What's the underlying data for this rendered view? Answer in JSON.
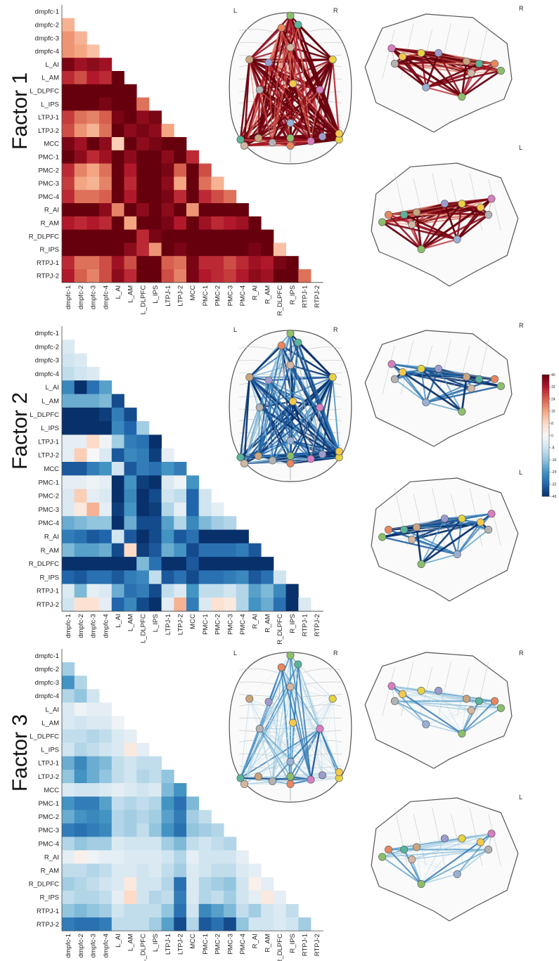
{
  "figure": {
    "rois": [
      "dmpfc-1",
      "dmpfc-2",
      "dmpfc-3",
      "dmpfc-4",
      "L_AI",
      "L_AM",
      "L_DLPFC",
      "L_IPS",
      "LTPJ-1",
      "LTPJ-2",
      "MCC",
      "PMC-1",
      "PMC-2",
      "PMC-3",
      "PMC-4",
      "R_AI",
      "R_AM",
      "R_DLPFC",
      "R_IPS",
      "RTPJ-1",
      "RTPJ-2"
    ],
    "hemisphere_labels": {
      "left": "L",
      "right": "R"
    },
    "colorbar": {
      "ticks": [
        "40",
        "32",
        "24",
        "16",
        "8",
        "0",
        "-8",
        "-16",
        "-24",
        "-32",
        "-40"
      ],
      "min": -40,
      "max": 40,
      "colors": {
        "neg": "#08306b",
        "mid": "#f7f7f7",
        "pos": "#67000d"
      }
    },
    "factors": [
      {
        "label": "Factor 1",
        "sign": 1
      },
      {
        "label": "Factor 2",
        "sign": -1
      },
      {
        "label": "Factor 3",
        "sign": -1
      }
    ]
  },
  "chart_data": [
    {
      "type": "heatmap",
      "title": "Factor 1",
      "rows": [
        "dmpfc-1",
        "dmpfc-2",
        "dmpfc-3",
        "dmpfc-4",
        "L_AI",
        "L_AM",
        "L_DLPFC",
        "L_IPS",
        "LTPJ-1",
        "LTPJ-2",
        "MCC",
        "PMC-1",
        "PMC-2",
        "PMC-3",
        "PMC-4",
        "R_AI",
        "R_AM",
        "R_DLPFC",
        "R_IPS",
        "RTPJ-1",
        "RTPJ-2"
      ],
      "columns": [
        "dmpfc-1",
        "dmpfc-2",
        "dmpfc-3",
        "dmpfc-4",
        "L_AI",
        "L_AM",
        "L_DLPFC",
        "L_IPS",
        "LTPJ-1",
        "LTPJ-2",
        "MCC",
        "PMC-1",
        "PMC-2",
        "PMC-3",
        "PMC-4",
        "R_AI",
        "R_AM",
        "R_DLPFC",
        "R_IPS",
        "RTPJ-1",
        "RTPJ-2"
      ],
      "lower_triangle": true,
      "value_range": [
        -40,
        40
      ],
      "values": [
        [],
        [
          14
        ],
        [
          18,
          14
        ],
        [
          18,
          16,
          12
        ],
        [
          38,
          34,
          36,
          34
        ],
        [
          30,
          26,
          32,
          30,
          40
        ],
        [
          40,
          40,
          40,
          40,
          40,
          40
        ],
        [
          40,
          40,
          40,
          38,
          40,
          40,
          22
        ],
        [
          28,
          22,
          20,
          24,
          38,
          40,
          36,
          38
        ],
        [
          26,
          18,
          14,
          22,
          40,
          36,
          38,
          36,
          16
        ],
        [
          38,
          34,
          40,
          36,
          10,
          40,
          36,
          38,
          40,
          40
        ],
        [
          40,
          36,
          30,
          34,
          40,
          36,
          40,
          40,
          36,
          40,
          30
        ],
        [
          30,
          20,
          16,
          22,
          40,
          32,
          40,
          40,
          38,
          24,
          40,
          26
        ],
        [
          28,
          16,
          14,
          20,
          40,
          30,
          40,
          40,
          36,
          16,
          40,
          22,
          14
        ],
        [
          30,
          22,
          22,
          24,
          40,
          32,
          40,
          40,
          38,
          30,
          40,
          30,
          26,
          22
        ],
        [
          40,
          40,
          40,
          36,
          20,
          40,
          36,
          40,
          36,
          40,
          18,
          40,
          40,
          40,
          40
        ],
        [
          32,
          30,
          32,
          30,
          40,
          16,
          40,
          40,
          38,
          32,
          40,
          34,
          30,
          32,
          34,
          40
        ],
        [
          40,
          40,
          40,
          40,
          40,
          40,
          30,
          38,
          40,
          40,
          40,
          40,
          40,
          40,
          40,
          40,
          40
        ],
        [
          40,
          40,
          40,
          40,
          40,
          36,
          30,
          18,
          40,
          38,
          40,
          40,
          40,
          40,
          40,
          38,
          40,
          12
        ],
        [
          30,
          22,
          22,
          26,
          34,
          26,
          40,
          40,
          24,
          22,
          38,
          30,
          30,
          26,
          30,
          34,
          32,
          38,
          40
        ],
        [
          32,
          24,
          20,
          26,
          36,
          30,
          40,
          40,
          26,
          20,
          38,
          32,
          30,
          28,
          32,
          36,
          34,
          40,
          40,
          22
        ]
      ]
    },
    {
      "type": "heatmap",
      "title": "Factor 2",
      "rows": [
        "dmpfc-1",
        "dmpfc-2",
        "dmpfc-3",
        "dmpfc-4",
        "L_AI",
        "L_AM",
        "L_DLPFC",
        "L_IPS",
        "LTPJ-1",
        "LTPJ-2",
        "MCC",
        "PMC-1",
        "PMC-2",
        "PMC-3",
        "PMC-4",
        "R_AI",
        "R_AM",
        "R_DLPFC",
        "R_IPS",
        "RTPJ-1",
        "RTPJ-2"
      ],
      "columns": [
        "dmpfc-1",
        "dmpfc-2",
        "dmpfc-3",
        "dmpfc-4",
        "L_AI",
        "L_AM",
        "L_DLPFC",
        "L_IPS",
        "LTPJ-1",
        "LTPJ-2",
        "MCC",
        "PMC-1",
        "PMC-2",
        "PMC-3",
        "PMC-4",
        "R_AI",
        "R_AM",
        "R_DLPFC",
        "R_IPS",
        "RTPJ-1",
        "RTPJ-2"
      ],
      "lower_triangle": true,
      "value_range": [
        -40,
        40
      ],
      "values": [
        [],
        [
          -6
        ],
        [
          -8,
          -6
        ],
        [
          -10,
          -8,
          -6
        ],
        [
          -26,
          -40,
          -30,
          -22
        ],
        [
          -20,
          -20,
          -20,
          -18,
          -36
        ],
        [
          -40,
          -40,
          -40,
          -38,
          -28,
          -36
        ],
        [
          -40,
          -40,
          -40,
          -40,
          -26,
          -32,
          -14
        ],
        [
          -4,
          -4,
          8,
          -2,
          -14,
          -28,
          -30,
          -40
        ],
        [
          -4,
          10,
          0,
          -6,
          -34,
          -26,
          -28,
          -38,
          -4
        ],
        [
          -34,
          -34,
          -28,
          -24,
          -8,
          -34,
          -28,
          -30,
          -24,
          -28
        ],
        [
          -4,
          -4,
          -2,
          -4,
          -40,
          -24,
          -38,
          -40,
          -6,
          -2,
          -24
        ],
        [
          -6,
          10,
          -4,
          -6,
          -40,
          -26,
          -40,
          -36,
          -8,
          -10,
          -32,
          -8
        ],
        [
          -6,
          4,
          14,
          -4,
          -38,
          -24,
          -40,
          -38,
          -12,
          -4,
          -32,
          -8,
          -4
        ],
        [
          -20,
          -18,
          -16,
          -16,
          -40,
          -20,
          -36,
          -36,
          -22,
          -12,
          -26,
          -18,
          -14,
          -12
        ],
        [
          -28,
          -30,
          -34,
          -32,
          -8,
          -34,
          -40,
          -36,
          -24,
          -34,
          -30,
          -40,
          -40,
          -40,
          -40
        ],
        [
          -18,
          -22,
          -22,
          -20,
          -36,
          8,
          -38,
          -34,
          -20,
          -24,
          -36,
          -30,
          -30,
          -30,
          -28,
          -34
        ],
        [
          -40,
          -40,
          -40,
          -40,
          -40,
          -40,
          -18,
          -30,
          -40,
          -40,
          -34,
          -40,
          -40,
          -40,
          -40,
          -40,
          -40
        ],
        [
          -32,
          -34,
          -30,
          -30,
          -34,
          -28,
          -26,
          -10,
          -34,
          -30,
          -36,
          -30,
          -30,
          -28,
          -26,
          -34,
          -30,
          -8
        ],
        [
          -6,
          -18,
          -4,
          -6,
          -20,
          -30,
          -28,
          -36,
          -10,
          -6,
          -24,
          -10,
          -10,
          -8,
          -12,
          -22,
          -18,
          -26,
          -40
        ],
        [
          -8,
          6,
          6,
          -4,
          -32,
          -26,
          -36,
          -40,
          -4,
          14,
          -28,
          -6,
          6,
          4,
          -12,
          -24,
          -20,
          -30,
          -40,
          -6
        ]
      ]
    },
    {
      "type": "heatmap",
      "title": "Factor 3",
      "rows": [
        "dmpfc-1",
        "dmpfc-2",
        "dmpfc-3",
        "dmpfc-4",
        "L_AI",
        "L_AM",
        "L_DLPFC",
        "L_IPS",
        "LTPJ-1",
        "LTPJ-2",
        "MCC",
        "PMC-1",
        "PMC-2",
        "PMC-3",
        "PMC-4",
        "R_AI",
        "R_AM",
        "R_DLPFC",
        "R_IPS",
        "RTPJ-1",
        "RTPJ-2"
      ],
      "columns": [
        "dmpfc-1",
        "dmpfc-2",
        "dmpfc-3",
        "dmpfc-4",
        "L_AI",
        "L_AM",
        "L_DLPFC",
        "L_IPS",
        "LTPJ-1",
        "LTPJ-2",
        "MCC",
        "PMC-1",
        "PMC-2",
        "PMC-3",
        "PMC-4",
        "R_AI",
        "R_AM",
        "R_DLPFC",
        "R_IPS",
        "RTPJ-1",
        "RTPJ-2"
      ],
      "lower_triangle": true,
      "value_range": [
        -40,
        40
      ],
      "values": [
        [],
        [
          -14
        ],
        [
          -24,
          -12
        ],
        [
          -12,
          -16,
          -8
        ],
        [
          -6,
          -2,
          -4,
          -4
        ],
        [
          -6,
          -8,
          -6,
          -6,
          -2
        ],
        [
          -10,
          -10,
          -12,
          -10,
          -6,
          -4
        ],
        [
          -8,
          -12,
          -10,
          -8,
          -6,
          4,
          -4
        ],
        [
          -20,
          -26,
          -20,
          -18,
          -10,
          -8,
          -10,
          -10
        ],
        [
          -16,
          -24,
          -20,
          -16,
          -10,
          -8,
          -12,
          -10,
          -16
        ],
        [
          -6,
          -8,
          -8,
          -6,
          -4,
          -6,
          -8,
          -6,
          -18,
          -24
        ],
        [
          -24,
          -28,
          -28,
          -22,
          -10,
          -12,
          -10,
          -12,
          -24,
          -30,
          -18
        ],
        [
          -20,
          -24,
          -26,
          -24,
          -12,
          -14,
          -12,
          -14,
          -22,
          -28,
          -14,
          -10
        ],
        [
          -28,
          -30,
          -28,
          -26,
          -12,
          -14,
          -10,
          -16,
          -24,
          -30,
          -16,
          -14,
          -12
        ],
        [
          -12,
          -16,
          -14,
          -14,
          -6,
          -8,
          -8,
          -8,
          -14,
          -18,
          -10,
          -8,
          -10,
          -12
        ],
        [
          -4,
          2,
          -2,
          -4,
          -4,
          -6,
          -6,
          -6,
          -8,
          -12,
          -4,
          -8,
          -8,
          -8,
          -4
        ],
        [
          -10,
          -10,
          -12,
          -10,
          -6,
          -6,
          -8,
          -6,
          -10,
          -14,
          -6,
          -8,
          -10,
          -10,
          -6,
          -4
        ],
        [
          -14,
          -12,
          -10,
          -8,
          -6,
          4,
          -8,
          -8,
          -12,
          -30,
          -6,
          -12,
          -14,
          -16,
          -8,
          2,
          -4
        ],
        [
          -10,
          -12,
          -12,
          -10,
          -4,
          8,
          -8,
          -12,
          -10,
          -28,
          -6,
          -12,
          -10,
          -14,
          -8,
          -4,
          4,
          -4
        ],
        [
          -16,
          -18,
          -16,
          -14,
          -8,
          -10,
          -10,
          -10,
          -16,
          -30,
          -8,
          -26,
          -22,
          -18,
          -10,
          -14,
          -8,
          -6,
          -10
        ],
        [
          -28,
          -30,
          -30,
          -28,
          -10,
          -10,
          -10,
          -14,
          -22,
          -36,
          -12,
          -34,
          -30,
          -36,
          -16,
          -8,
          -8,
          -6,
          -8,
          -14
        ]
      ]
    }
  ]
}
